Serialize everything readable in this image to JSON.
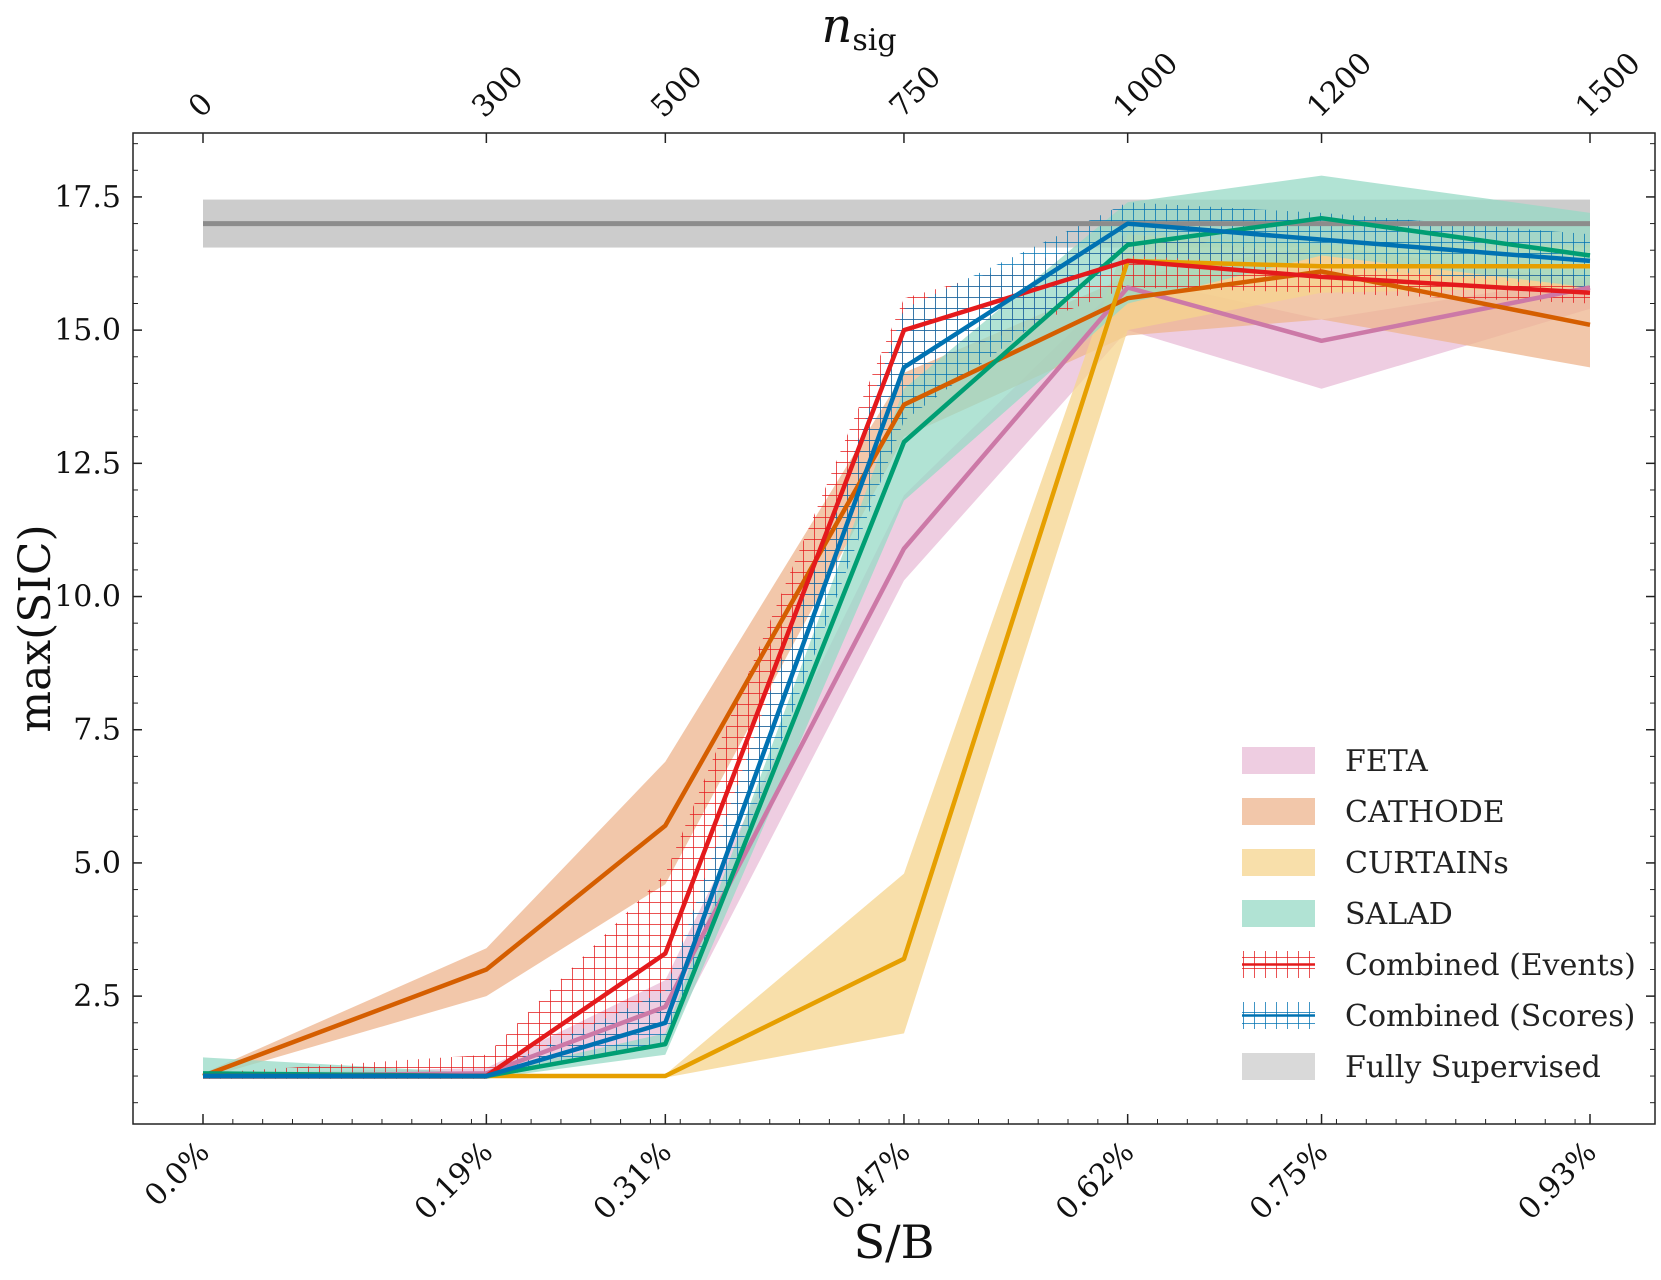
{
  "chart_data": {
    "type": "line",
    "title": "",
    "xlabel": "S/B",
    "ylabel": "max(SIC)",
    "top_xlabel": "n",
    "top_xlabel_sub": "sig",
    "x": [
      0,
      0.19,
      0.31,
      0.47,
      0.62,
      0.75,
      0.93
    ],
    "x_tick_labels": [
      "0.0%",
      "0.19%",
      "0.31%",
      "0.47%",
      "0.62%",
      "0.75%",
      "0.93%"
    ],
    "top_tick_labels": [
      "0",
      "300",
      "500",
      "750",
      "1000",
      "1200",
      "1500"
    ],
    "ylim": [
      0.1,
      18.7
    ],
    "y_ticks": [
      2.5,
      5.0,
      7.5,
      10.0,
      12.5,
      15.0,
      17.5
    ],
    "y_tick_labels": [
      "2.5",
      "5.0",
      "7.5",
      "10.0",
      "12.5",
      "15.0",
      "17.5"
    ],
    "legend_position": "lower right",
    "series": [
      {
        "name": "FETA",
        "color": "#cc79a7",
        "band_color": "#e8bcd7",
        "hatched": false,
        "values": [
          1.0,
          1.05,
          2.3,
          10.9,
          15.8,
          14.8,
          15.8
        ],
        "lower": [
          0.95,
          1.0,
          1.6,
          10.3,
          15.0,
          13.9,
          15.4
        ],
        "upper": [
          1.05,
          1.15,
          2.8,
          11.9,
          16.0,
          15.2,
          16.0
        ]
      },
      {
        "name": "CATHODE",
        "color": "#d55e00",
        "band_color": "#edb48e",
        "hatched": false,
        "values": [
          1.0,
          3.0,
          5.7,
          13.6,
          15.6,
          16.1,
          15.1
        ],
        "lower": [
          0.95,
          2.5,
          4.6,
          13.0,
          14.9,
          15.2,
          14.3
        ],
        "upper": [
          1.05,
          3.4,
          6.9,
          14.2,
          16.0,
          16.6,
          15.9
        ]
      },
      {
        "name": "CURTAINs",
        "color": "#e69f00",
        "band_color": "#f5d48d",
        "hatched": false,
        "values": [
          1.0,
          1.0,
          1.0,
          3.2,
          16.3,
          16.2,
          16.2
        ],
        "lower": [
          0.97,
          0.97,
          0.97,
          1.8,
          15.0,
          15.7,
          15.8
        ],
        "upper": [
          1.03,
          1.03,
          1.03,
          4.8,
          16.8,
          16.6,
          16.6
        ]
      },
      {
        "name": "SALAD",
        "color": "#009e73",
        "band_color": "#97d9c6",
        "hatched": false,
        "values": [
          1.05,
          1.0,
          1.6,
          12.9,
          16.6,
          17.1,
          16.4
        ],
        "lower": [
          0.95,
          0.95,
          1.4,
          11.8,
          15.5,
          16.4,
          15.8
        ],
        "upper": [
          1.35,
          1.05,
          1.8,
          13.9,
          17.4,
          17.9,
          17.2
        ]
      },
      {
        "name": "Combined (Events)",
        "color": "#e41a1c",
        "band_color": "#e41a1c",
        "hatched": true,
        "values": [
          1.0,
          1.0,
          3.3,
          15.0,
          16.3,
          16.0,
          15.7
        ],
        "lower": [
          0.95,
          0.95,
          2.0,
          14.2,
          15.8,
          15.7,
          15.5
        ],
        "upper": [
          1.05,
          1.4,
          4.8,
          15.6,
          16.8,
          16.4,
          16.0
        ]
      },
      {
        "name": "Combined (Scores)",
        "color": "#0072b2",
        "band_color": "#0072b2",
        "hatched": true,
        "values": [
          1.0,
          1.0,
          2.0,
          14.3,
          17.0,
          16.7,
          16.3
        ],
        "lower": [
          0.95,
          0.95,
          1.6,
          13.3,
          16.4,
          16.2,
          15.8
        ],
        "upper": [
          1.05,
          1.05,
          2.6,
          15.4,
          17.4,
          17.2,
          16.8
        ]
      }
    ],
    "reference": {
      "name": "Fully Supervised",
      "color": "#8c8c8c",
      "band_color": "#cccccc",
      "value": 17.0,
      "lower": 16.55,
      "upper": 17.45
    }
  }
}
